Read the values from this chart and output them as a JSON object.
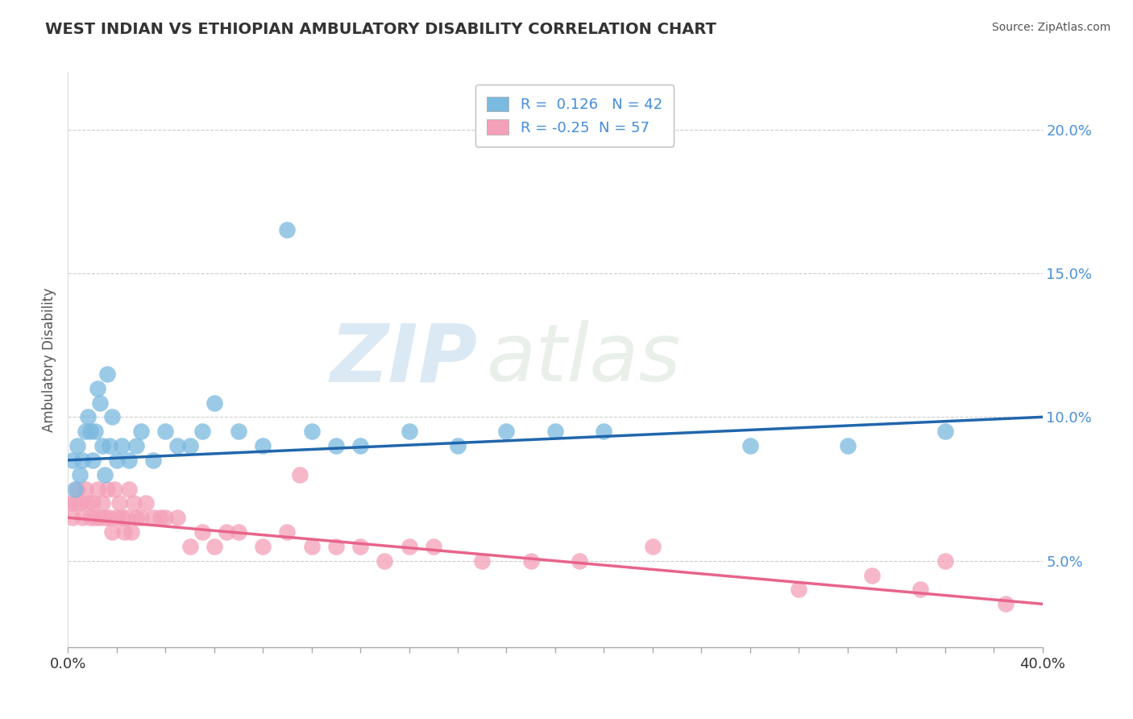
{
  "title": "WEST INDIAN VS ETHIOPIAN AMBULATORY DISABILITY CORRELATION CHART",
  "source": "Source: ZipAtlas.com",
  "ylabel": "Ambulatory Disability",
  "xlim": [
    0.0,
    40.0
  ],
  "ylim": [
    2.0,
    22.0
  ],
  "yticks": [
    5.0,
    10.0,
    15.0,
    20.0
  ],
  "ytick_labels": [
    "5.0%",
    "10.0%",
    "15.0%",
    "20.0%"
  ],
  "xtick_labels_show": [
    "0.0%",
    "40.0%"
  ],
  "xtick_positions_show": [
    0.0,
    40.0
  ],
  "xtick_minor_positions": [
    0.0,
    2.0,
    4.0,
    6.0,
    8.0,
    10.0,
    12.0,
    14.0,
    16.0,
    18.0,
    20.0,
    22.0,
    24.0,
    26.0,
    28.0,
    30.0,
    32.0,
    34.0,
    36.0,
    38.0,
    40.0
  ],
  "west_indian_color": "#7ab9e0",
  "ethiopian_color": "#f4a0b8",
  "west_indian_line_color": "#2166ac",
  "ethiopian_line_color": "#e8648a",
  "west_indian_R": 0.126,
  "west_indian_N": 42,
  "ethiopian_R": -0.25,
  "ethiopian_N": 57,
  "watermark_zip": "ZIP",
  "watermark_atlas": "atlas",
  "background_color": "#ffffff",
  "grid_color": "#c8c8c8",
  "title_color": "#333333",
  "axis_label_color": "#555555",
  "ytick_color": "#4a90d9",
  "wi_trend_y0": 8.5,
  "wi_trend_y1": 10.0,
  "eth_trend_y0": 6.5,
  "eth_trend_y1": 3.5,
  "west_indian_scatter_x": [
    0.2,
    0.3,
    0.4,
    0.5,
    0.6,
    0.7,
    0.8,
    0.9,
    1.0,
    1.1,
    1.2,
    1.3,
    1.4,
    1.5,
    1.6,
    1.7,
    1.8,
    2.0,
    2.2,
    2.5,
    2.8,
    3.0,
    3.5,
    4.0,
    4.5,
    5.0,
    5.5,
    6.0,
    7.0,
    8.0,
    9.0,
    10.0,
    11.0,
    12.0,
    14.0,
    16.0,
    18.0,
    20.0,
    22.0,
    28.0,
    32.0,
    36.0
  ],
  "west_indian_scatter_y": [
    8.5,
    7.5,
    9.0,
    8.0,
    8.5,
    9.5,
    10.0,
    9.5,
    8.5,
    9.5,
    11.0,
    10.5,
    9.0,
    8.0,
    11.5,
    9.0,
    10.0,
    8.5,
    9.0,
    8.5,
    9.0,
    9.5,
    8.5,
    9.5,
    9.0,
    9.0,
    9.5,
    10.5,
    9.5,
    9.0,
    16.5,
    9.5,
    9.0,
    9.0,
    9.5,
    9.0,
    9.5,
    9.5,
    9.5,
    9.0,
    9.0,
    9.5
  ],
  "ethiopian_scatter_x": [
    0.1,
    0.2,
    0.3,
    0.4,
    0.5,
    0.6,
    0.7,
    0.8,
    0.9,
    1.0,
    1.1,
    1.2,
    1.3,
    1.4,
    1.5,
    1.6,
    1.7,
    1.8,
    1.9,
    2.0,
    2.1,
    2.2,
    2.3,
    2.4,
    2.5,
    2.6,
    2.7,
    2.8,
    3.0,
    3.2,
    3.5,
    3.8,
    4.0,
    4.5,
    5.0,
    5.5,
    6.0,
    6.5,
    7.0,
    8.0,
    9.0,
    10.0,
    11.0,
    12.0,
    13.0,
    14.0,
    15.0,
    17.0,
    19.0,
    21.0,
    24.0,
    30.0,
    33.0,
    35.0,
    36.0,
    38.5,
    9.5
  ],
  "ethiopian_scatter_y": [
    7.0,
    6.5,
    7.0,
    7.5,
    7.0,
    6.5,
    7.5,
    7.0,
    6.5,
    7.0,
    6.5,
    7.5,
    6.5,
    7.0,
    6.5,
    7.5,
    6.5,
    6.0,
    7.5,
    6.5,
    7.0,
    6.5,
    6.0,
    6.5,
    7.5,
    6.0,
    7.0,
    6.5,
    6.5,
    7.0,
    6.5,
    6.5,
    6.5,
    6.5,
    5.5,
    6.0,
    5.5,
    6.0,
    6.0,
    5.5,
    6.0,
    5.5,
    5.5,
    5.5,
    5.0,
    5.5,
    5.5,
    5.0,
    5.0,
    5.0,
    5.5,
    4.0,
    4.5,
    4.0,
    5.0,
    3.5,
    8.0
  ]
}
